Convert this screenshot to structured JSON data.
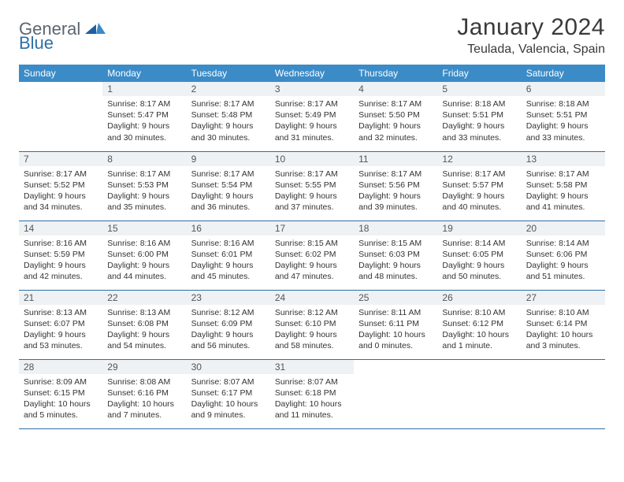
{
  "logo": {
    "general": "General",
    "blue": "Blue"
  },
  "header": {
    "month_title": "January 2024",
    "location": "Teulada, Valencia, Spain"
  },
  "colors": {
    "header_bg": "#3b8bc7",
    "header_text": "#ffffff",
    "daynum_bg": "#eef2f5",
    "row_border": "#2f6fa7",
    "logo_gray": "#5b6670",
    "logo_blue": "#2f6fa7"
  },
  "weekdays": [
    "Sunday",
    "Monday",
    "Tuesday",
    "Wednesday",
    "Thursday",
    "Friday",
    "Saturday"
  ],
  "weeks": [
    [
      {
        "empty": true,
        "num": "",
        "sunrise": "",
        "sunset": "",
        "daylight": ""
      },
      {
        "num": "1",
        "sunrise": "Sunrise: 8:17 AM",
        "sunset": "Sunset: 5:47 PM",
        "daylight": "Daylight: 9 hours and 30 minutes."
      },
      {
        "num": "2",
        "sunrise": "Sunrise: 8:17 AM",
        "sunset": "Sunset: 5:48 PM",
        "daylight": "Daylight: 9 hours and 30 minutes."
      },
      {
        "num": "3",
        "sunrise": "Sunrise: 8:17 AM",
        "sunset": "Sunset: 5:49 PM",
        "daylight": "Daylight: 9 hours and 31 minutes."
      },
      {
        "num": "4",
        "sunrise": "Sunrise: 8:17 AM",
        "sunset": "Sunset: 5:50 PM",
        "daylight": "Daylight: 9 hours and 32 minutes."
      },
      {
        "num": "5",
        "sunrise": "Sunrise: 8:18 AM",
        "sunset": "Sunset: 5:51 PM",
        "daylight": "Daylight: 9 hours and 33 minutes."
      },
      {
        "num": "6",
        "sunrise": "Sunrise: 8:18 AM",
        "sunset": "Sunset: 5:51 PM",
        "daylight": "Daylight: 9 hours and 33 minutes."
      }
    ],
    [
      {
        "num": "7",
        "sunrise": "Sunrise: 8:17 AM",
        "sunset": "Sunset: 5:52 PM",
        "daylight": "Daylight: 9 hours and 34 minutes."
      },
      {
        "num": "8",
        "sunrise": "Sunrise: 8:17 AM",
        "sunset": "Sunset: 5:53 PM",
        "daylight": "Daylight: 9 hours and 35 minutes."
      },
      {
        "num": "9",
        "sunrise": "Sunrise: 8:17 AM",
        "sunset": "Sunset: 5:54 PM",
        "daylight": "Daylight: 9 hours and 36 minutes."
      },
      {
        "num": "10",
        "sunrise": "Sunrise: 8:17 AM",
        "sunset": "Sunset: 5:55 PM",
        "daylight": "Daylight: 9 hours and 37 minutes."
      },
      {
        "num": "11",
        "sunrise": "Sunrise: 8:17 AM",
        "sunset": "Sunset: 5:56 PM",
        "daylight": "Daylight: 9 hours and 39 minutes."
      },
      {
        "num": "12",
        "sunrise": "Sunrise: 8:17 AM",
        "sunset": "Sunset: 5:57 PM",
        "daylight": "Daylight: 9 hours and 40 minutes."
      },
      {
        "num": "13",
        "sunrise": "Sunrise: 8:17 AM",
        "sunset": "Sunset: 5:58 PM",
        "daylight": "Daylight: 9 hours and 41 minutes."
      }
    ],
    [
      {
        "num": "14",
        "sunrise": "Sunrise: 8:16 AM",
        "sunset": "Sunset: 5:59 PM",
        "daylight": "Daylight: 9 hours and 42 minutes."
      },
      {
        "num": "15",
        "sunrise": "Sunrise: 8:16 AM",
        "sunset": "Sunset: 6:00 PM",
        "daylight": "Daylight: 9 hours and 44 minutes."
      },
      {
        "num": "16",
        "sunrise": "Sunrise: 8:16 AM",
        "sunset": "Sunset: 6:01 PM",
        "daylight": "Daylight: 9 hours and 45 minutes."
      },
      {
        "num": "17",
        "sunrise": "Sunrise: 8:15 AM",
        "sunset": "Sunset: 6:02 PM",
        "daylight": "Daylight: 9 hours and 47 minutes."
      },
      {
        "num": "18",
        "sunrise": "Sunrise: 8:15 AM",
        "sunset": "Sunset: 6:03 PM",
        "daylight": "Daylight: 9 hours and 48 minutes."
      },
      {
        "num": "19",
        "sunrise": "Sunrise: 8:14 AM",
        "sunset": "Sunset: 6:05 PM",
        "daylight": "Daylight: 9 hours and 50 minutes."
      },
      {
        "num": "20",
        "sunrise": "Sunrise: 8:14 AM",
        "sunset": "Sunset: 6:06 PM",
        "daylight": "Daylight: 9 hours and 51 minutes."
      }
    ],
    [
      {
        "num": "21",
        "sunrise": "Sunrise: 8:13 AM",
        "sunset": "Sunset: 6:07 PM",
        "daylight": "Daylight: 9 hours and 53 minutes."
      },
      {
        "num": "22",
        "sunrise": "Sunrise: 8:13 AM",
        "sunset": "Sunset: 6:08 PM",
        "daylight": "Daylight: 9 hours and 54 minutes."
      },
      {
        "num": "23",
        "sunrise": "Sunrise: 8:12 AM",
        "sunset": "Sunset: 6:09 PM",
        "daylight": "Daylight: 9 hours and 56 minutes."
      },
      {
        "num": "24",
        "sunrise": "Sunrise: 8:12 AM",
        "sunset": "Sunset: 6:10 PM",
        "daylight": "Daylight: 9 hours and 58 minutes."
      },
      {
        "num": "25",
        "sunrise": "Sunrise: 8:11 AM",
        "sunset": "Sunset: 6:11 PM",
        "daylight": "Daylight: 10 hours and 0 minutes."
      },
      {
        "num": "26",
        "sunrise": "Sunrise: 8:10 AM",
        "sunset": "Sunset: 6:12 PM",
        "daylight": "Daylight: 10 hours and 1 minute."
      },
      {
        "num": "27",
        "sunrise": "Sunrise: 8:10 AM",
        "sunset": "Sunset: 6:14 PM",
        "daylight": "Daylight: 10 hours and 3 minutes."
      }
    ],
    [
      {
        "num": "28",
        "sunrise": "Sunrise: 8:09 AM",
        "sunset": "Sunset: 6:15 PM",
        "daylight": "Daylight: 10 hours and 5 minutes."
      },
      {
        "num": "29",
        "sunrise": "Sunrise: 8:08 AM",
        "sunset": "Sunset: 6:16 PM",
        "daylight": "Daylight: 10 hours and 7 minutes."
      },
      {
        "num": "30",
        "sunrise": "Sunrise: 8:07 AM",
        "sunset": "Sunset: 6:17 PM",
        "daylight": "Daylight: 10 hours and 9 minutes."
      },
      {
        "num": "31",
        "sunrise": "Sunrise: 8:07 AM",
        "sunset": "Sunset: 6:18 PM",
        "daylight": "Daylight: 10 hours and 11 minutes."
      },
      {
        "empty": true,
        "num": "",
        "sunrise": "",
        "sunset": "",
        "daylight": ""
      },
      {
        "empty": true,
        "num": "",
        "sunrise": "",
        "sunset": "",
        "daylight": ""
      },
      {
        "empty": true,
        "num": "",
        "sunrise": "",
        "sunset": "",
        "daylight": ""
      }
    ]
  ]
}
